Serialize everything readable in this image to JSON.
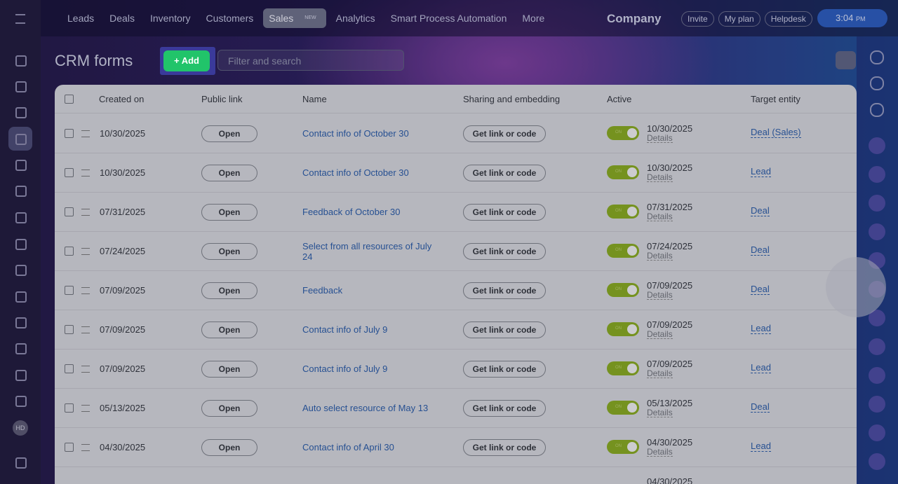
{
  "header": {
    "nav": [
      "Leads",
      "Deals",
      "Inventory",
      "Customers",
      "Sales",
      "Analytics",
      "Smart Process Automation",
      "More"
    ],
    "badge": "NEW",
    "company": "Company",
    "buttons": [
      "Invite",
      "My plan",
      "Helpdesk"
    ],
    "time": "3:04",
    "ampm": "PM"
  },
  "sidebar": {
    "avatar": "HD"
  },
  "page": {
    "title": "CRM forms",
    "add": "Add",
    "search": "Filter and search"
  },
  "table": {
    "columns": [
      "Created on",
      "Public link",
      "Name",
      "Sharing and embedding",
      "Active",
      "Target entity"
    ],
    "open": "Open",
    "share": "Get link or code",
    "toggle": "ON",
    "details": "Details",
    "rows": [
      {
        "date": "10/30/2025",
        "name": "Contact info of October 30",
        "active_date": "10/30/2025",
        "target": "Deal (Sales)"
      },
      {
        "date": "10/30/2025",
        "name": "Contact info of October 30",
        "active_date": "10/30/2025",
        "target": "Lead"
      },
      {
        "date": "07/31/2025",
        "name": "Feedback of October 30",
        "active_date": "07/31/2025",
        "target": "Deal"
      },
      {
        "date": "07/24/2025",
        "name": "Select from all resources of July 24",
        "active_date": "07/24/2025",
        "target": "Deal"
      },
      {
        "date": "07/09/2025",
        "name": "Feedback",
        "active_date": "07/09/2025",
        "target": "Deal"
      },
      {
        "date": "07/09/2025",
        "name": "Contact info of July 9",
        "active_date": "07/09/2025",
        "target": "Lead"
      },
      {
        "date": "07/09/2025",
        "name": "Contact info of July 9",
        "active_date": "07/09/2025",
        "target": "Lead"
      },
      {
        "date": "05/13/2025",
        "name": "Auto select resource of May 13",
        "active_date": "05/13/2025",
        "target": "Deal"
      },
      {
        "date": "04/30/2025",
        "name": "Contact info of April 30",
        "active_date": "04/30/2025",
        "target": "Lead"
      },
      {
        "active_date": "04/30/2025"
      }
    ]
  }
}
